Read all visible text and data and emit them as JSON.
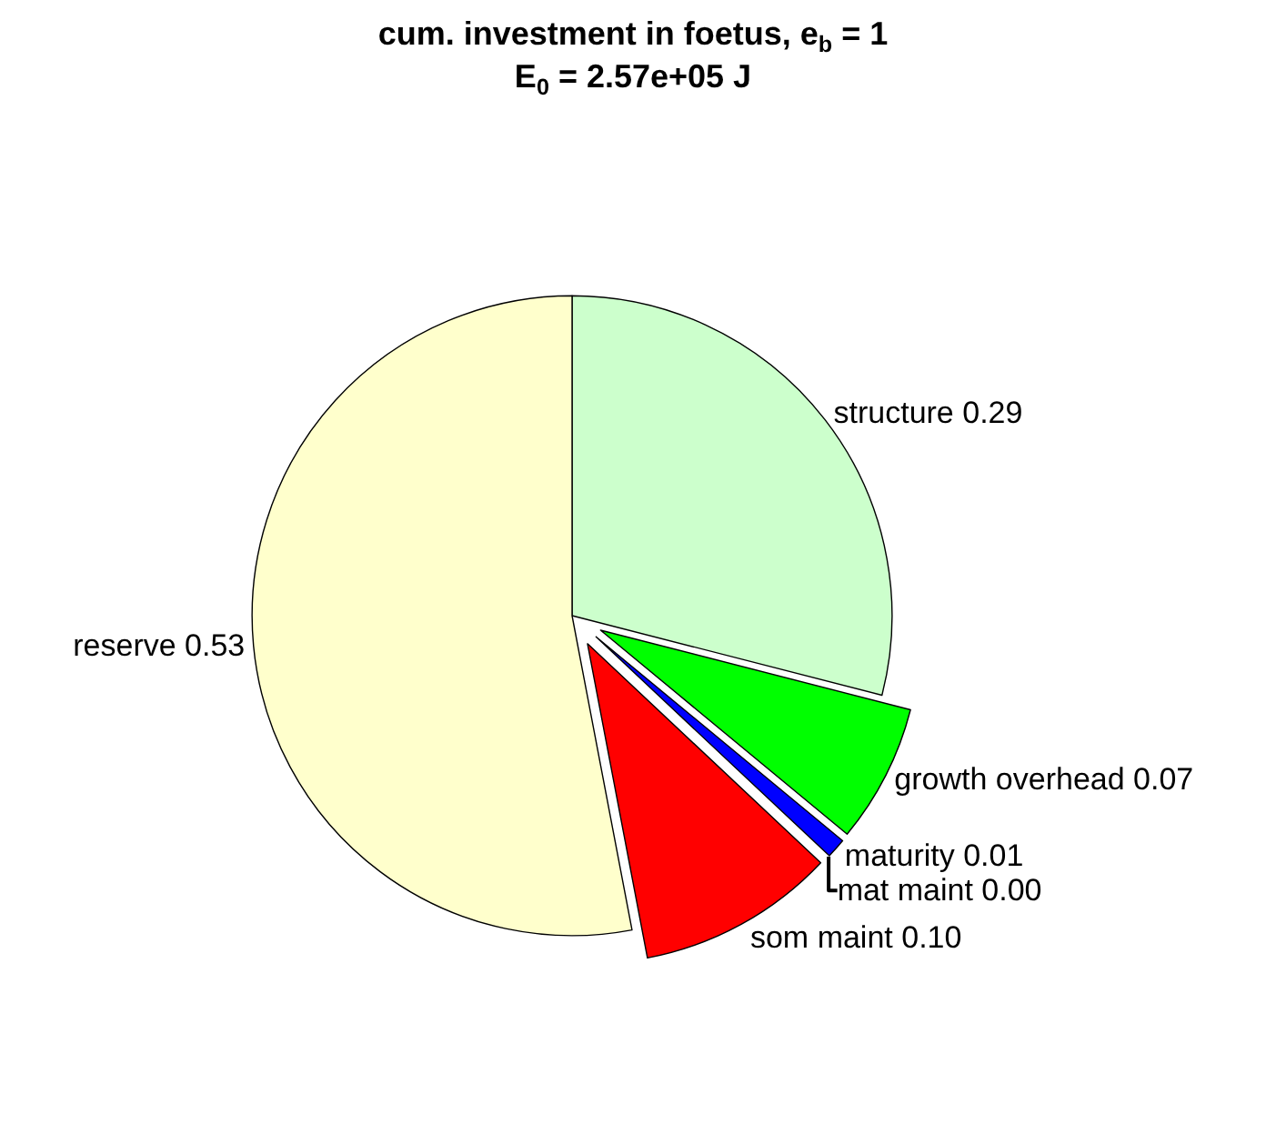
{
  "chart_data": {
    "type": "pie",
    "title": "cum. investment in foetus, e$_{b}$ = 1",
    "subtitle": "E$_{0}$ = 2.57e+05 J",
    "categories": [
      "structure 0.29",
      "growth overhead 0.07",
      "maturity 0.01",
      "mat maint 0.00",
      "som maint 0.10",
      "reserve 0.53"
    ],
    "values": [
      0.29,
      0.07,
      0.01,
      0.0,
      0.1,
      0.53
    ],
    "colors": [
      "#ccffcc",
      "#00ff00",
      "#0000ff",
      "#8000ff",
      "#ff0000",
      "#ffffcc"
    ],
    "legend": false
  }
}
